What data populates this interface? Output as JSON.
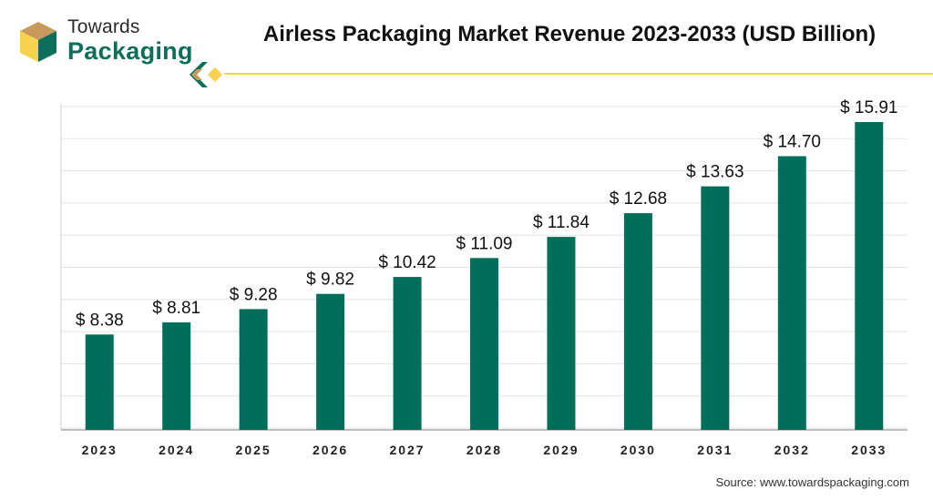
{
  "logo": {
    "word1": "Towards",
    "word2": "Packaging"
  },
  "title": "Airless Packaging Market Revenue 2023-2033 (USD Billion)",
  "source": "Source: www.towardspackaging.com",
  "colors": {
    "bar": "#006f5a",
    "accent_yellow": "#f6d24e",
    "brand_tan": "#c79a5b",
    "brand_green": "#0c6f5c"
  },
  "chart_data": {
    "type": "bar",
    "categories": [
      "2023",
      "2024",
      "2025",
      "2026",
      "2027",
      "2028",
      "2029",
      "2030",
      "2031",
      "2032",
      "2033"
    ],
    "values": [
      8.38,
      8.81,
      9.28,
      9.82,
      10.42,
      11.09,
      11.84,
      12.68,
      13.63,
      14.7,
      15.91
    ],
    "data_labels": [
      "$ 8.38",
      "$ 8.81",
      "$ 9.28",
      "$ 9.82",
      "$ 10.42",
      "$ 11.09",
      "$ 11.84",
      "$ 12.68",
      "$ 13.63",
      "$ 14.70",
      "$ 15.91"
    ],
    "ylim": [
      5,
      15.91
    ],
    "grid": true,
    "xlabel": "",
    "ylabel": ""
  }
}
